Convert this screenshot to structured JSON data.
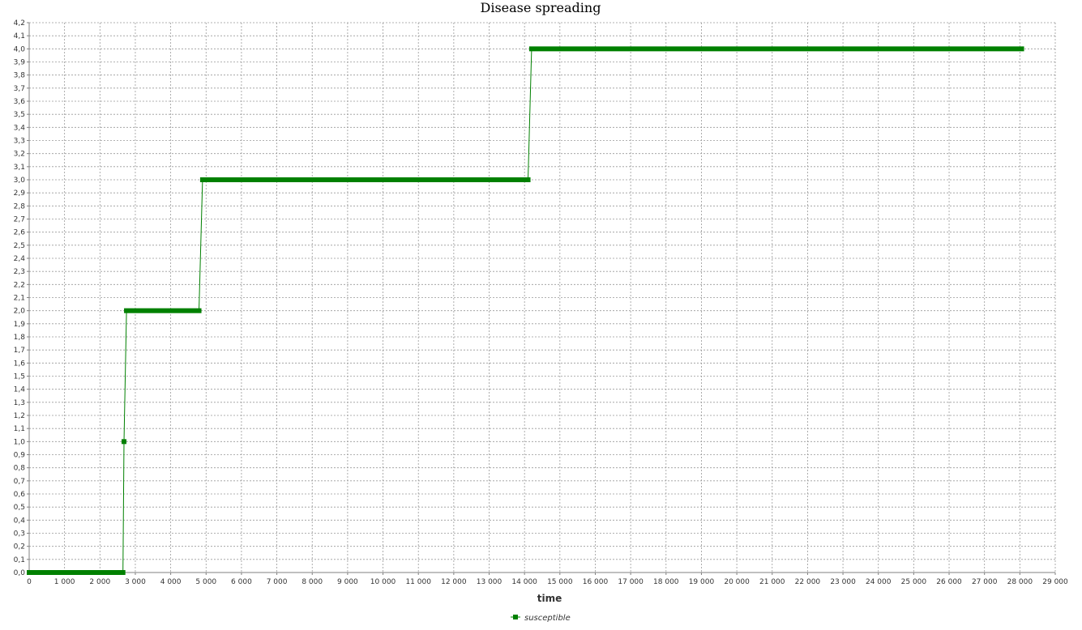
{
  "chart_data": {
    "type": "line",
    "title": "Disease spreading",
    "xlabel": "time",
    "ylabel": "",
    "xlim": [
      0,
      29000
    ],
    "ylim": [
      0,
      4.2
    ],
    "x_ticks": [
      0,
      1000,
      2000,
      3000,
      4000,
      5000,
      6000,
      7000,
      8000,
      9000,
      10000,
      11000,
      12000,
      13000,
      14000,
      15000,
      16000,
      17000,
      18000,
      19000,
      20000,
      21000,
      22000,
      23000,
      24000,
      25000,
      26000,
      27000,
      28000,
      29000
    ],
    "x_tick_labels": [
      "0",
      "1 000",
      "2 000",
      "3 000",
      "4 000",
      "5 000",
      "6 000",
      "7 000",
      "8 000",
      "9 000",
      "10 000",
      "11 000",
      "12 000",
      "13 000",
      "14 000",
      "15 000",
      "16 000",
      "17 000",
      "18 000",
      "19 000",
      "20 000",
      "21 000",
      "22 000",
      "23 000",
      "24 000",
      "25 000",
      "26 000",
      "27 000",
      "28 000",
      "29 000"
    ],
    "y_ticks": [
      0,
      0.1,
      0.2,
      0.3,
      0.4,
      0.5,
      0.6,
      0.7,
      0.8,
      0.9,
      1.0,
      1.1,
      1.2,
      1.3,
      1.4,
      1.5,
      1.6,
      1.7,
      1.8,
      1.9,
      2.0,
      2.1,
      2.2,
      2.3,
      2.4,
      2.5,
      2.6,
      2.7,
      2.8,
      2.9,
      3.0,
      3.1,
      3.2,
      3.3,
      3.4,
      3.5,
      3.6,
      3.7,
      3.8,
      3.9,
      4.0,
      4.1,
      4.2
    ],
    "y_tick_labels": [
      "0,0",
      "0,1",
      "0,2",
      "0,3",
      "0,4",
      "0,5",
      "0,6",
      "0,7",
      "0,8",
      "0,9",
      "1,0",
      "1,1",
      "1,2",
      "1,3",
      "1,4",
      "1,5",
      "1,6",
      "1,7",
      "1,8",
      "1,9",
      "2,0",
      "2,1",
      "2,2",
      "2,3",
      "2,4",
      "2,5",
      "2,6",
      "2,7",
      "2,8",
      "2,9",
      "3,0",
      "3,1",
      "3,2",
      "3,3",
      "3,4",
      "3,5",
      "3,6",
      "3,7",
      "3,8",
      "3,9",
      "4,0",
      "4,1",
      "4,2"
    ],
    "grid": true,
    "legend_position": "bottom-center",
    "series": [
      {
        "name": "susceptible",
        "color": "#008000",
        "marker": "square",
        "segments": [
          {
            "x_start": 0,
            "x_end": 2650,
            "y": 0
          },
          {
            "x_start": 2750,
            "x_end": 4800,
            "y": 2
          },
          {
            "x_start": 4900,
            "x_end": 14100,
            "y": 3
          },
          {
            "x_start": 14200,
            "x_end": 28050,
            "y": 4
          }
        ],
        "points": [
          {
            "x": 2680,
            "y": 1
          }
        ]
      }
    ]
  }
}
